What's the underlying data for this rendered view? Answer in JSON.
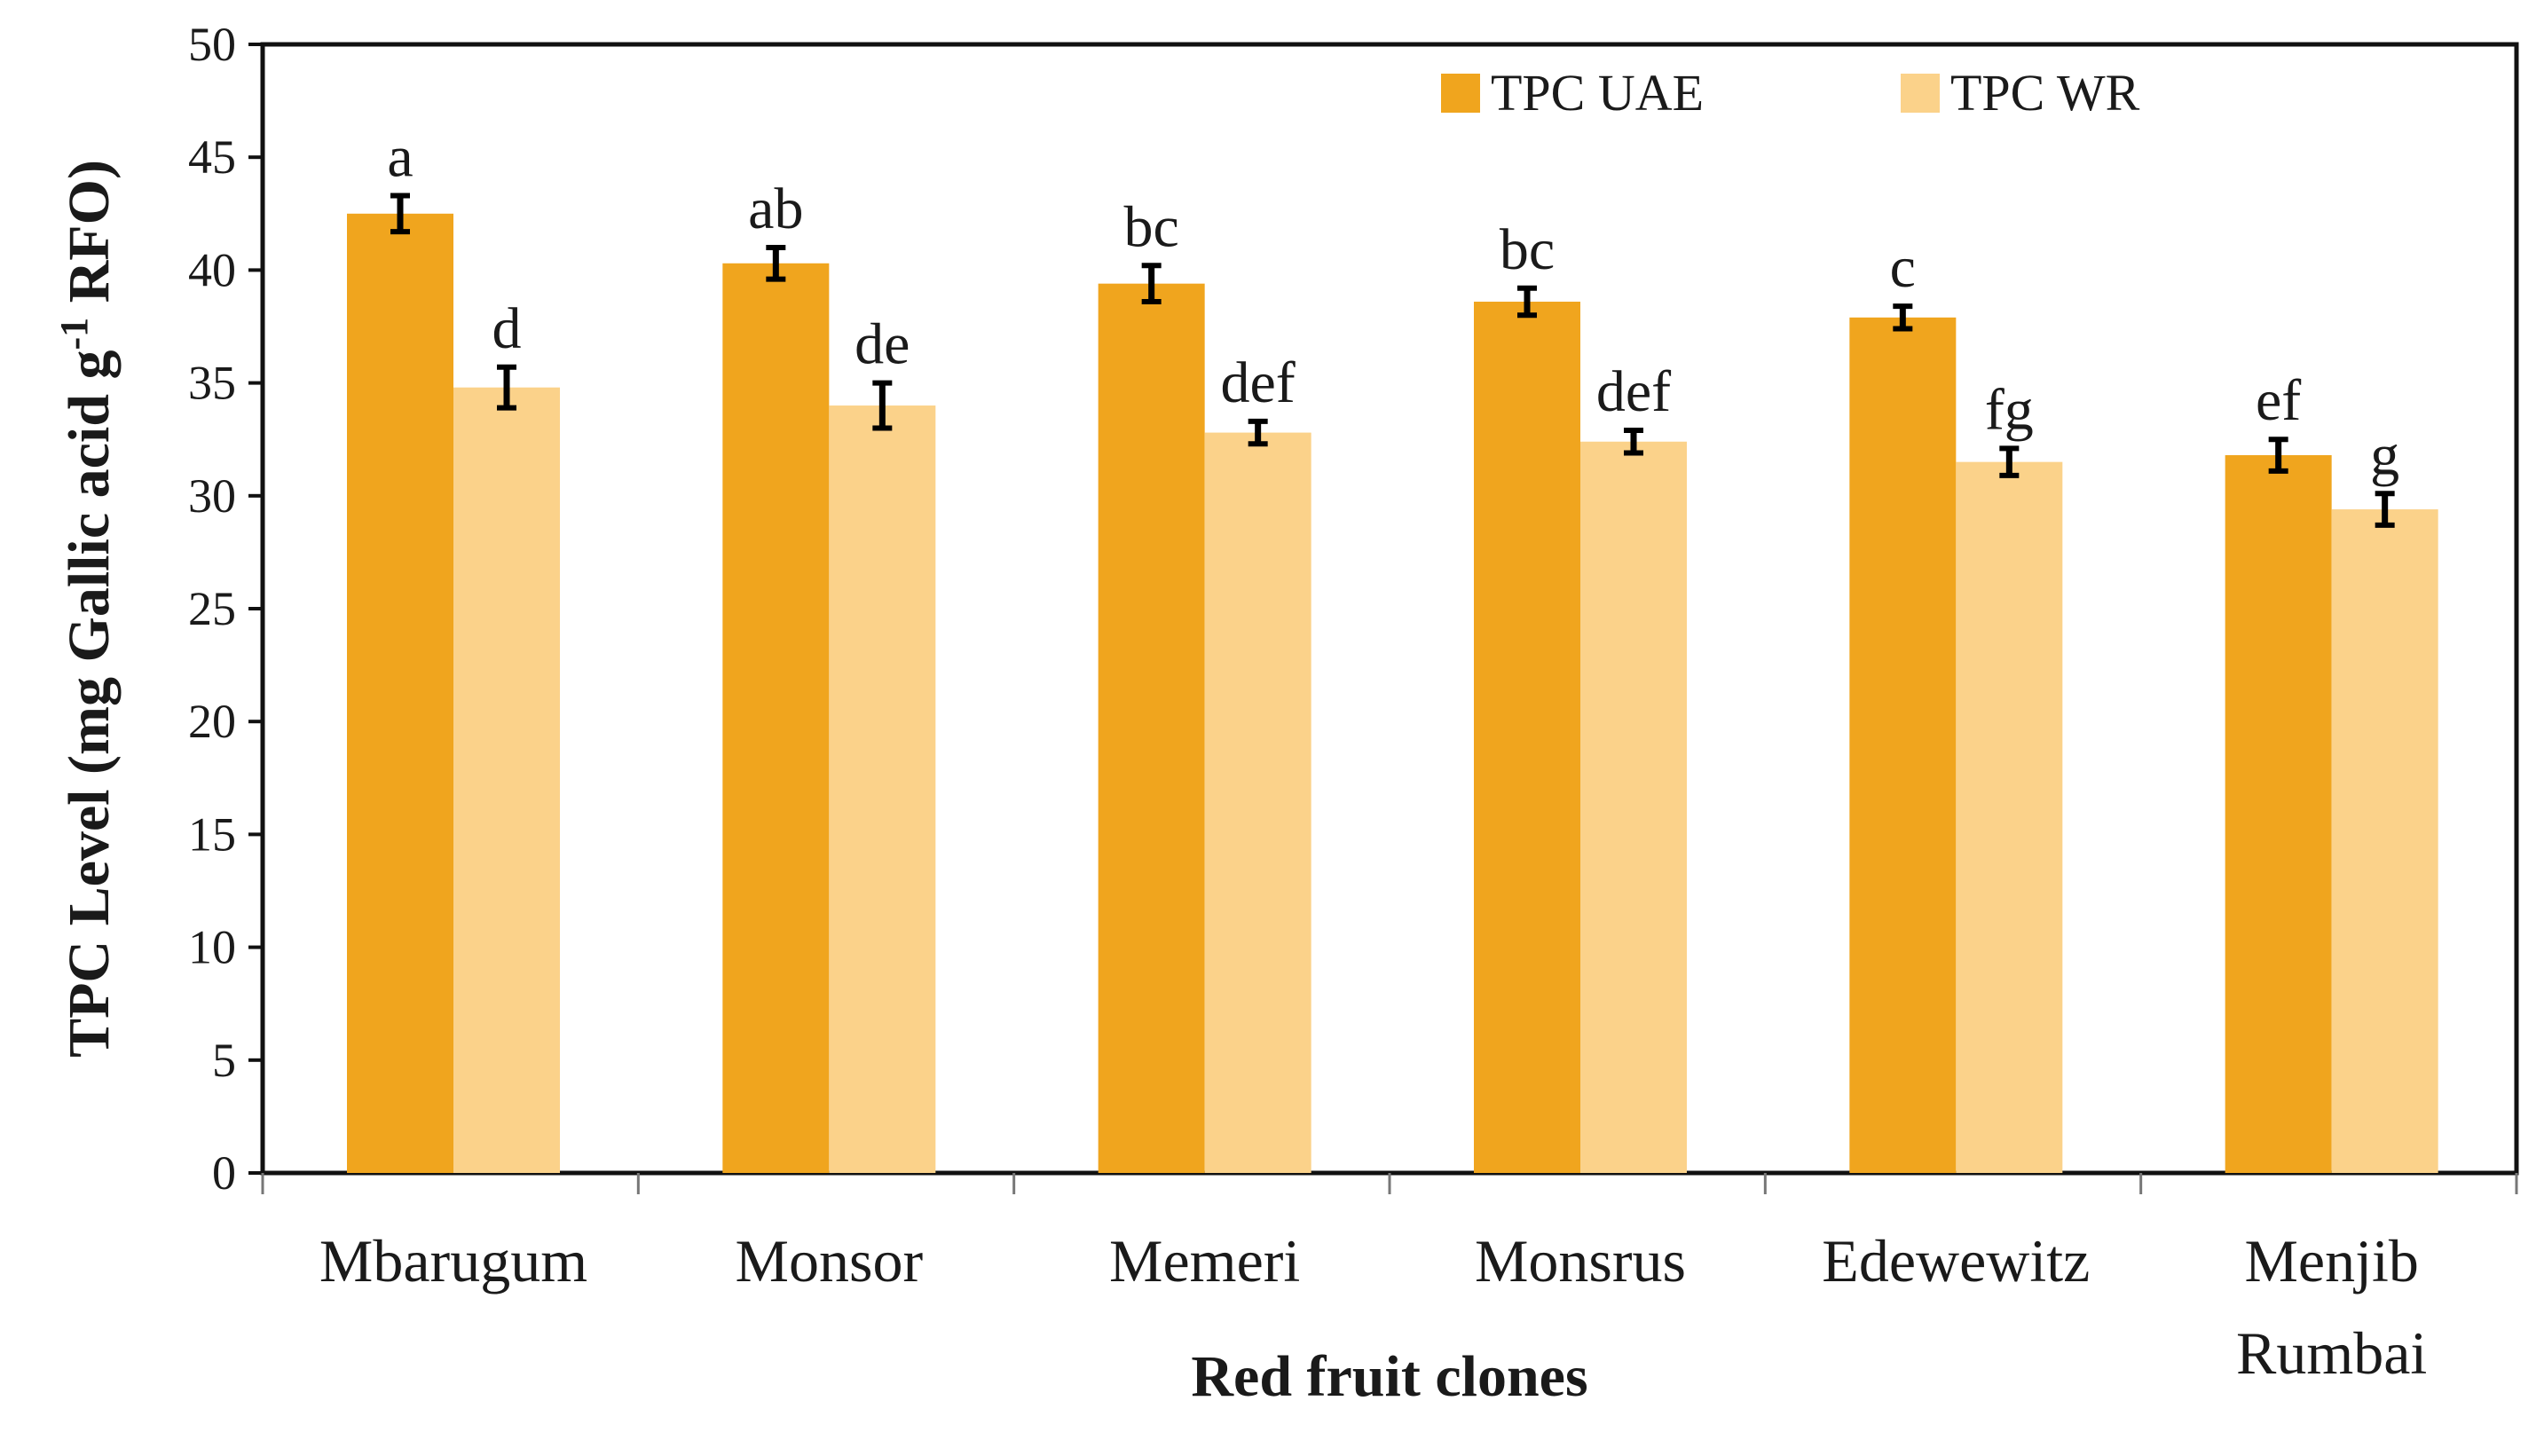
{
  "chart_data": {
    "type": "bar",
    "title": "",
    "xlabel": "Red fruit clones",
    "ylabel_parts": {
      "before": "TPC Level (mg Gallic acid g",
      "superscript": "-1",
      "after": " RFO)"
    },
    "ylim": [
      0,
      50
    ],
    "yticks": [
      "0",
      "5",
      "10",
      "15",
      "20",
      "25",
      "30",
      "35",
      "40",
      "45",
      "50"
    ],
    "categories": [
      [
        "Mbarugum"
      ],
      [
        "Monsor"
      ],
      [
        "Memeri"
      ],
      [
        "Monsrus"
      ],
      [
        "Edewewitz"
      ],
      [
        "Menjib",
        "Rumbai"
      ]
    ],
    "series": [
      {
        "name": "TPC UAE",
        "color": "#F0A51E",
        "values": [
          42.5,
          40.3,
          39.4,
          38.6,
          37.9,
          31.8
        ],
        "errors": [
          0.8,
          0.7,
          0.8,
          0.6,
          0.5,
          0.7
        ],
        "letters": [
          "a",
          "ab",
          "bc",
          "bc",
          "c",
          "ef"
        ]
      },
      {
        "name": "TPC WR",
        "color": "#FBD28A",
        "values": [
          34.8,
          34.0,
          32.8,
          32.4,
          31.5,
          29.4
        ],
        "errors": [
          0.9,
          1.0,
          0.5,
          0.5,
          0.6,
          0.7
        ],
        "letters": [
          "d",
          "de",
          "def",
          "def",
          "fg",
          "g"
        ]
      }
    ],
    "legend_position": "top-right",
    "grid": false
  }
}
